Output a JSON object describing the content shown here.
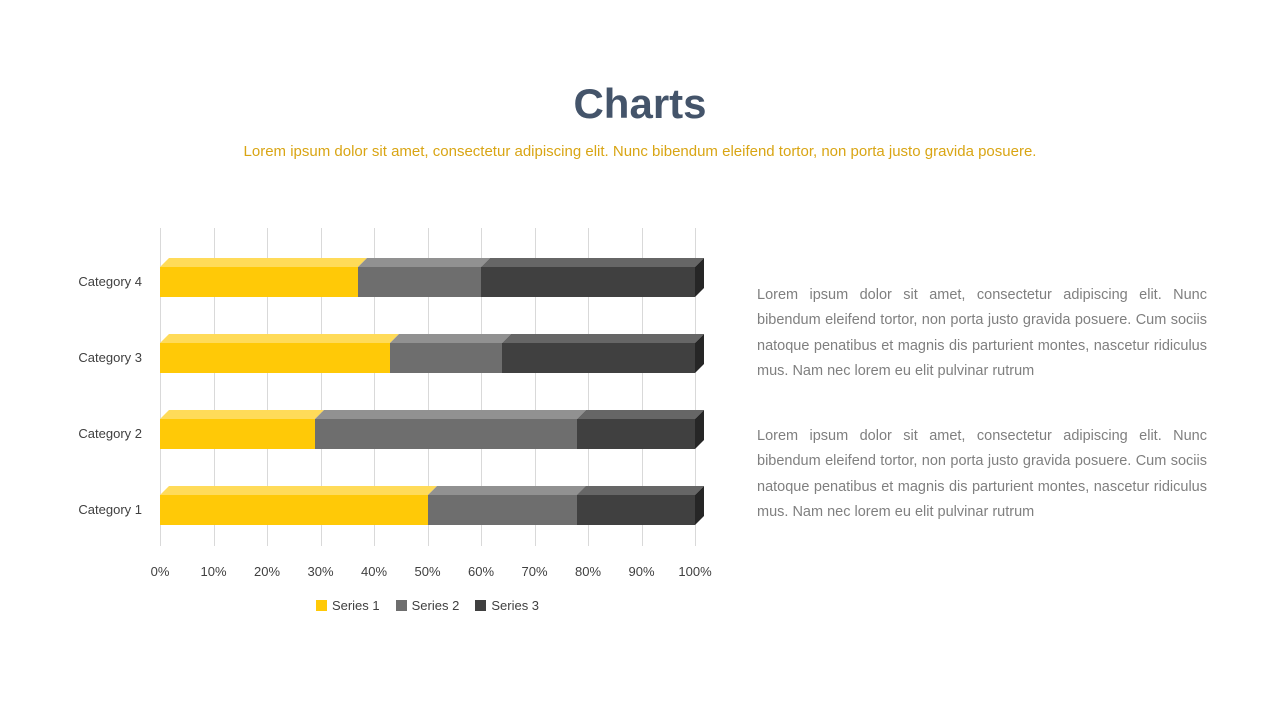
{
  "header": {
    "title": "Charts",
    "subtitle": "Lorem ipsum dolor sit amet, consectetur adipiscing elit. Nunc bibendum eleifend tortor, non porta justo gravida posuere."
  },
  "body": {
    "paragraph1": "Lorem ipsum dolor sit amet, consectetur adipiscing elit. Nunc bibendum eleifend tortor, non porta justo gravida posuere. Cum sociis natoque penatibus et magnis dis parturient montes, nascetur ridiculus mus. Nam nec lorem eu elit pulvinar rutrum",
    "paragraph2": "Lorem ipsum dolor sit amet, consectetur adipiscing elit. Nunc bibendum eleifend tortor, non porta justo gravida posuere. Cum sociis natoque penatibus et magnis dis parturient montes, nascetur ridiculus mus. Nam nec lorem eu elit pulvinar rutrum"
  },
  "colors": {
    "title": "#44546A",
    "subtitle": "#D9A514",
    "body_text": "#7F7F7F",
    "gridline": "#D9D9D9"
  },
  "chart_data": {
    "type": "bar",
    "orientation": "horizontal",
    "stacked": true,
    "grid": true,
    "legend_position": "bottom",
    "xlim": [
      0,
      100
    ],
    "x_ticks": [
      "0%",
      "10%",
      "20%",
      "30%",
      "40%",
      "50%",
      "60%",
      "70%",
      "80%",
      "90%",
      "100%"
    ],
    "categories": [
      "Category 4",
      "Category 3",
      "Category 2",
      "Category 1"
    ],
    "series": [
      {
        "name": "Series 1",
        "color": "#FFC907",
        "top_color": "#FFDB59",
        "side_color": "#C79B00",
        "values": [
          37,
          43,
          29,
          50
        ]
      },
      {
        "name": "Series 2",
        "color": "#6E6E6E",
        "top_color": "#919191",
        "side_color": "#4F4F4F",
        "values": [
          23,
          21,
          49,
          28
        ]
      },
      {
        "name": "Series 3",
        "color": "#404040",
        "top_color": "#666666",
        "side_color": "#262626",
        "values": [
          40,
          36,
          22,
          22
        ]
      }
    ]
  }
}
